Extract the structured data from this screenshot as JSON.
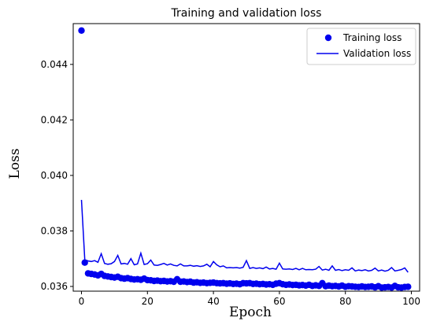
{
  "chart_data": {
    "type": "line",
    "title": "Training and validation loss",
    "xlabel": "Epoch",
    "ylabel": "Loss",
    "xlim": [
      -2.5,
      102.5
    ],
    "ylim": [
      0.03583,
      0.04547
    ],
    "xticks": [
      0,
      20,
      40,
      60,
      80,
      100
    ],
    "xtick_labels": [
      "0",
      "20",
      "40",
      "60",
      "80",
      "100"
    ],
    "yticks": [
      0.036,
      0.038,
      0.04,
      0.042,
      0.044
    ],
    "ytick_labels": [
      "0.036",
      "0.038",
      "0.040",
      "0.042",
      "0.044"
    ],
    "grid": false,
    "legend_position": "top-right",
    "colors": {
      "series": "#0000ee",
      "axes": "#000000"
    },
    "series": [
      {
        "name": "Training loss",
        "style": "markers",
        "x": [
          0,
          1,
          2,
          3,
          4,
          5,
          6,
          7,
          8,
          9,
          10,
          11,
          12,
          13,
          14,
          15,
          16,
          17,
          18,
          19,
          20,
          21,
          22,
          23,
          24,
          25,
          26,
          27,
          28,
          29,
          30,
          31,
          32,
          33,
          34,
          35,
          36,
          37,
          38,
          39,
          40,
          41,
          42,
          43,
          44,
          45,
          46,
          47,
          48,
          49,
          50,
          51,
          52,
          53,
          54,
          55,
          56,
          57,
          58,
          59,
          60,
          61,
          62,
          63,
          64,
          65,
          66,
          67,
          68,
          69,
          70,
          71,
          72,
          73,
          74,
          75,
          76,
          77,
          78,
          79,
          80,
          81,
          82,
          83,
          84,
          85,
          86,
          87,
          88,
          89,
          90,
          91,
          92,
          93,
          94,
          95,
          96,
          97,
          98,
          99
        ],
        "values": [
          0.04522,
          0.03686,
          0.03647,
          0.03645,
          0.03643,
          0.0364,
          0.03645,
          0.03638,
          0.03636,
          0.03634,
          0.03632,
          0.03635,
          0.0363,
          0.03628,
          0.0363,
          0.03627,
          0.03625,
          0.03626,
          0.03624,
          0.03628,
          0.03623,
          0.03622,
          0.0362,
          0.03621,
          0.03619,
          0.0362,
          0.03618,
          0.03619,
          0.03617,
          0.03626,
          0.03617,
          0.03618,
          0.03616,
          0.03617,
          0.03614,
          0.03615,
          0.03613,
          0.03614,
          0.03612,
          0.03613,
          0.03614,
          0.03612,
          0.03611,
          0.03612,
          0.0361,
          0.03611,
          0.03609,
          0.0361,
          0.03608,
          0.03612,
          0.03611,
          0.03612,
          0.03609,
          0.0361,
          0.03608,
          0.03609,
          0.03607,
          0.03608,
          0.03606,
          0.0361,
          0.03612,
          0.03608,
          0.03606,
          0.03607,
          0.03605,
          0.03606,
          0.03604,
          0.03605,
          0.03603,
          0.03606,
          0.03602,
          0.03604,
          0.03602,
          0.03612,
          0.03601,
          0.03603,
          0.03601,
          0.03602,
          0.036,
          0.03603,
          0.03599,
          0.03601,
          0.036,
          0.03599,
          0.03598,
          0.036,
          0.03598,
          0.03599,
          0.036,
          0.03597,
          0.03601,
          0.03596,
          0.03597,
          0.03598,
          0.03596,
          0.03602,
          0.03597,
          0.03596,
          0.03598,
          0.03599
        ]
      },
      {
        "name": "Validation loss",
        "style": "line",
        "x": [
          0,
          1,
          2,
          3,
          4,
          5,
          6,
          7,
          8,
          9,
          10,
          11,
          12,
          13,
          14,
          15,
          16,
          17,
          18,
          19,
          20,
          21,
          22,
          23,
          24,
          25,
          26,
          27,
          28,
          29,
          30,
          31,
          32,
          33,
          34,
          35,
          36,
          37,
          38,
          39,
          40,
          41,
          42,
          43,
          44,
          45,
          46,
          47,
          48,
          49,
          50,
          51,
          52,
          53,
          54,
          55,
          56,
          57,
          58,
          59,
          60,
          61,
          62,
          63,
          64,
          65,
          66,
          67,
          68,
          69,
          70,
          71,
          72,
          73,
          74,
          75,
          76,
          77,
          78,
          79,
          80,
          81,
          82,
          83,
          84,
          85,
          86,
          87,
          88,
          89,
          90,
          91,
          92,
          93,
          94,
          95,
          96,
          97,
          98,
          99
        ],
        "values": [
          0.03912,
          0.03696,
          0.03692,
          0.0369,
          0.03693,
          0.03687,
          0.03718,
          0.03683,
          0.0368,
          0.03682,
          0.0369,
          0.03712,
          0.03681,
          0.03683,
          0.0368,
          0.037,
          0.03678,
          0.03681,
          0.0372,
          0.03679,
          0.03682,
          0.03695,
          0.03677,
          0.03676,
          0.03679,
          0.03683,
          0.03677,
          0.03681,
          0.03676,
          0.03674,
          0.03681,
          0.03674,
          0.03674,
          0.03676,
          0.03673,
          0.03675,
          0.03672,
          0.03674,
          0.0368,
          0.03671,
          0.0369,
          0.03678,
          0.03671,
          0.03674,
          0.03667,
          0.03668,
          0.03667,
          0.03668,
          0.03666,
          0.03669,
          0.03693,
          0.03665,
          0.03668,
          0.03665,
          0.03667,
          0.03664,
          0.0367,
          0.03663,
          0.03665,
          0.03662,
          0.03684,
          0.03663,
          0.03662,
          0.03663,
          0.03661,
          0.03665,
          0.0366,
          0.03665,
          0.0366,
          0.03661,
          0.0366,
          0.03662,
          0.03672,
          0.03659,
          0.03662,
          0.03658,
          0.03674,
          0.03658,
          0.03661,
          0.03657,
          0.0366,
          0.03658,
          0.03667,
          0.03656,
          0.03659,
          0.03657,
          0.0366,
          0.03656,
          0.03658,
          0.03666,
          0.03656,
          0.03659,
          0.03655,
          0.03658,
          0.03668,
          0.03656,
          0.03658,
          0.03661,
          0.03667,
          0.03651
        ]
      }
    ]
  }
}
